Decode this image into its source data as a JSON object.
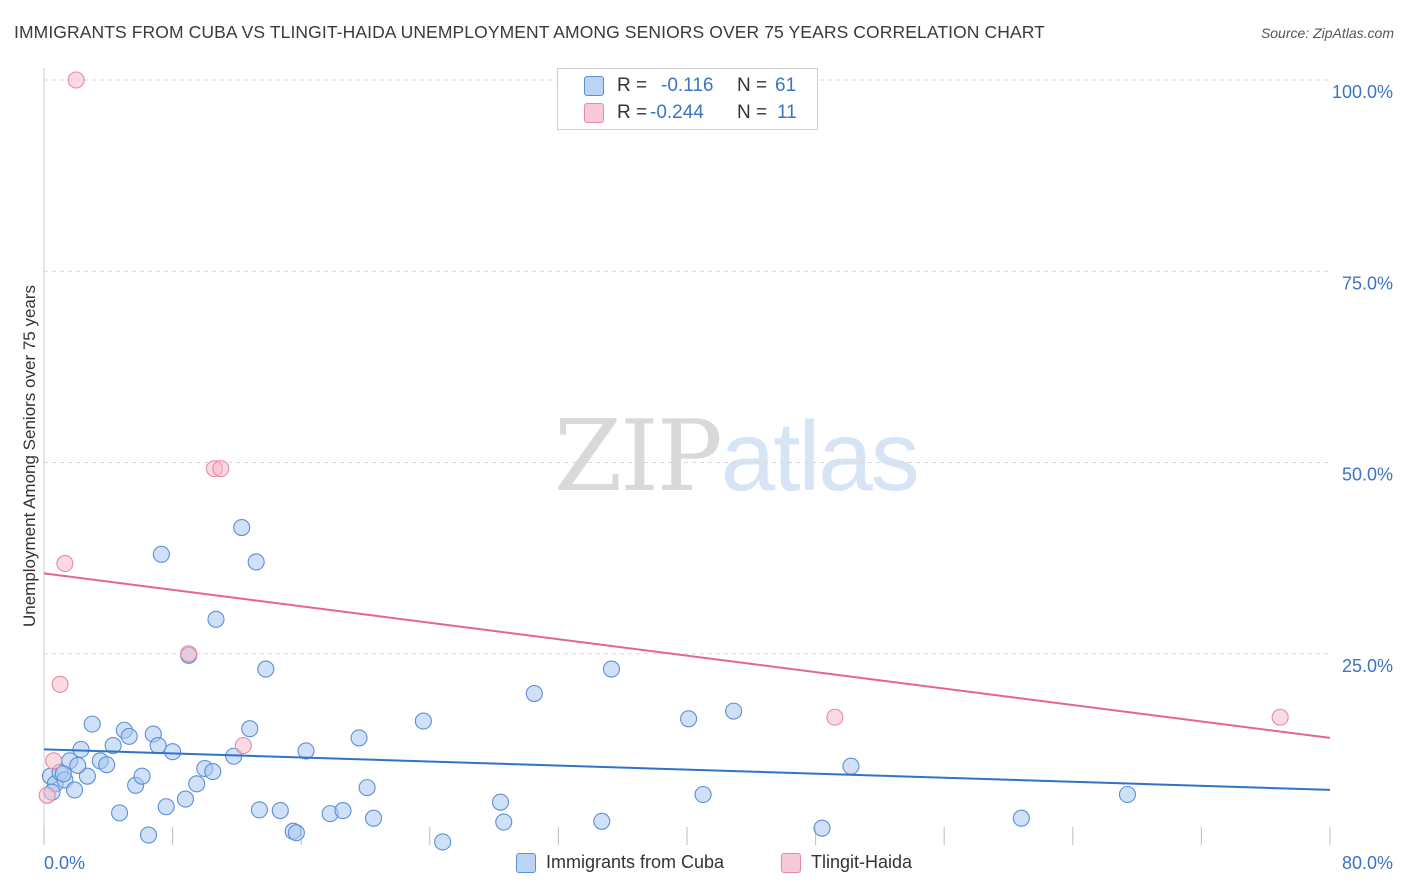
{
  "header": {
    "title": "IMMIGRANTS FROM CUBA VS TLINGIT-HAIDA UNEMPLOYMENT AMONG SENIORS OVER 75 YEARS CORRELATION CHART",
    "source": "Source: ZipAtlas.com"
  },
  "watermark": {
    "zip": "ZIP",
    "atlas": "atlas"
  },
  "legend_top": {
    "rows": [
      {
        "r_label": "R =",
        "r_value": "-0.116",
        "n_label": "N =",
        "n_value": "61"
      },
      {
        "r_label": "R =",
        "r_value": "-0.244",
        "n_label": "N =",
        "n_value": "11"
      }
    ]
  },
  "legend_bottom": {
    "series1": "Immigrants from Cuba",
    "series2": "Tlingit-Haida"
  },
  "colors": {
    "blue_fill": "#a9c8f0",
    "blue_stroke": "#5b8fd6",
    "blue_line": "#2f72c9",
    "pink_fill": "#f7bccb",
    "pink_stroke": "#e88aa6",
    "pink_line": "#e3668f",
    "axis_text": "#3b74c2",
    "grid": "#d9d9d9"
  },
  "chart_data": {
    "type": "scatter",
    "title": "IMMIGRANTS FROM CUBA VS TLINGIT-HAIDA UNEMPLOYMENT AMONG SENIORS OVER 75 YEARS CORRELATION CHART",
    "xlabel": "",
    "ylabel": "Unemployment Among Seniors over 75 years",
    "xlim": [
      0,
      80
    ],
    "ylim": [
      0,
      100
    ],
    "x_tick_labels": [
      "0.0%",
      "80.0%"
    ],
    "y_ticks": [
      25,
      50,
      75,
      100
    ],
    "y_tick_labels": [
      "25.0%",
      "50.0%",
      "75.0%",
      "100.0%"
    ],
    "series": [
      {
        "name": "Immigrants from Cuba",
        "r": -0.116,
        "n": 61,
        "trend": {
          "x": [
            0,
            80
          ],
          "y": [
            12.5,
            7.2
          ]
        },
        "points": [
          [
            0.4,
            9.0
          ],
          [
            0.7,
            8.0
          ],
          [
            1.0,
            9.5
          ],
          [
            1.3,
            8.5
          ],
          [
            1.6,
            11.0
          ],
          [
            1.9,
            7.2
          ],
          [
            2.3,
            12.5
          ],
          [
            2.7,
            9.0
          ],
          [
            3.0,
            15.8
          ],
          [
            3.5,
            11.0
          ],
          [
            3.9,
            10.5
          ],
          [
            4.3,
            13.0
          ],
          [
            4.7,
            4.2
          ],
          [
            5.0,
            15.0
          ],
          [
            5.3,
            14.2
          ],
          [
            5.7,
            7.8
          ],
          [
            6.1,
            9.0
          ],
          [
            6.5,
            1.3
          ],
          [
            6.8,
            14.5
          ],
          [
            7.1,
            13.0
          ],
          [
            7.3,
            38.0
          ],
          [
            7.6,
            5.0
          ],
          [
            8.0,
            12.2
          ],
          [
            8.8,
            6.0
          ],
          [
            9.0,
            24.8
          ],
          [
            9.5,
            8.0
          ],
          [
            10.0,
            10.0
          ],
          [
            10.5,
            9.6
          ],
          [
            10.7,
            29.5
          ],
          [
            11.8,
            11.6
          ],
          [
            12.3,
            41.5
          ],
          [
            12.8,
            15.2
          ],
          [
            13.2,
            37.0
          ],
          [
            13.4,
            4.6
          ],
          [
            13.8,
            23.0
          ],
          [
            14.7,
            4.5
          ],
          [
            15.5,
            1.8
          ],
          [
            15.7,
            1.6
          ],
          [
            16.3,
            12.3
          ],
          [
            17.8,
            4.1
          ],
          [
            18.6,
            4.5
          ],
          [
            19.6,
            14.0
          ],
          [
            20.1,
            7.5
          ],
          [
            20.5,
            3.5
          ],
          [
            23.6,
            16.2
          ],
          [
            24.8,
            0.4
          ],
          [
            28.4,
            5.6
          ],
          [
            28.6,
            3.0
          ],
          [
            30.5,
            19.8
          ],
          [
            34.7,
            3.1
          ],
          [
            35.3,
            23.0
          ],
          [
            40.1,
            16.5
          ],
          [
            41.0,
            6.6
          ],
          [
            42.9,
            17.5
          ],
          [
            48.4,
            2.2
          ],
          [
            50.2,
            10.3
          ],
          [
            60.8,
            3.5
          ],
          [
            67.4,
            6.6
          ],
          [
            0.5,
            6.9
          ],
          [
            1.2,
            9.3
          ],
          [
            2.1,
            10.4
          ]
        ]
      },
      {
        "name": "Tlingit-Haida",
        "r": -0.244,
        "n": 11,
        "trend": {
          "x": [
            0,
            80
          ],
          "y": [
            35.5,
            14.0
          ]
        },
        "points": [
          [
            2.0,
            100.0
          ],
          [
            10.6,
            49.2
          ],
          [
            11.0,
            49.2
          ],
          [
            1.3,
            36.8
          ],
          [
            9.0,
            25.0
          ],
          [
            1.0,
            21.0
          ],
          [
            0.6,
            11.0
          ],
          [
            12.4,
            13.0
          ],
          [
            49.2,
            16.7
          ],
          [
            76.9,
            16.7
          ],
          [
            0.2,
            6.5
          ]
        ]
      }
    ]
  }
}
